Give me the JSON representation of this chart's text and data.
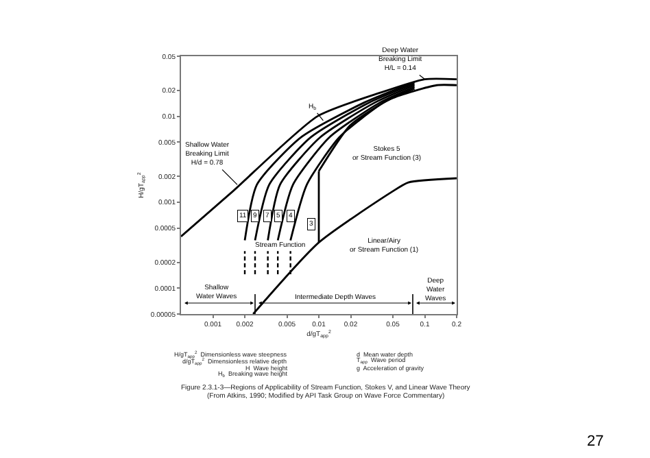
{
  "chart_data": {
    "type": "line",
    "xlabel": "d/gT$_{app}$$^{2}$",
    "ylabel": "H/gT$_{app}$$^{2}$",
    "log": "xy",
    "line_style": "solid",
    "marker": "none",
    "xlim": [
      0.0005,
      0.2
    ],
    "xticks": [
      0.001,
      0.002,
      0.005,
      0.01,
      0.02,
      0.05,
      0.1,
      0.2
    ],
    "ylim": [
      5e-05,
      0.05
    ],
    "yticks": [
      {
        "value": 5e-05,
        "label": "0.00005"
      },
      0.0001,
      0.0002,
      0.0005,
      0.001,
      0.002,
      0.005,
      0.01,
      0.02,
      0.05
    ],
    "series": [
      {
        "color": "#000000",
        "x": [
          0.0005,
          0.0015,
          0.0097,
          0.039,
          0.1,
          0.2
        ],
        "values": [
          0.0004,
          0.0013,
          0.01,
          0.019,
          0.027,
          0.027
        ]
      },
      {
        "color": "#000000",
        "x": [
          0.002,
          0.0026,
          0.0068,
          0.027,
          0.08
        ],
        "values": [
          0.00036,
          0.0016,
          0.0057,
          0.0145,
          0.025
        ]
      },
      {
        "color": "#000000",
        "x": [
          0.0025,
          0.0034,
          0.0084,
          0.03,
          0.08
        ],
        "values": [
          0.00036,
          0.0016,
          0.0057,
          0.0145,
          0.024
        ]
      },
      {
        "color": "#000000",
        "x": [
          0.0033,
          0.0043,
          0.0103,
          0.034,
          0.08
        ],
        "values": [
          0.00036,
          0.0016,
          0.0057,
          0.0145,
          0.023
        ]
      },
      {
        "color": "#000000",
        "x": [
          0.0041,
          0.0057,
          0.0126,
          0.038,
          0.08
        ],
        "values": [
          0.00036,
          0.0016,
          0.0057,
          0.0145,
          0.022
        ]
      },
      {
        "color": "#000000",
        "x": [
          0.0054,
          0.0077,
          0.0156,
          0.041,
          0.08
        ],
        "values": [
          0.00036,
          0.0016,
          0.0057,
          0.0145,
          0.021
        ]
      },
      {
        "color": "#000000",
        "x": [
          0.01,
          0.0197,
          0.048,
          0.13,
          0.2
        ],
        "values": [
          0.0023,
          0.0078,
          0.016,
          0.023,
          0.023
        ]
      },
      {
        "color": "#000000",
        "x": [
          0.01,
          0.01
        ],
        "values": [
          0.00034,
          0.0023
        ]
      },
      {
        "color": "#000000",
        "x": [
          0.0024,
          0.01,
          0.048,
          0.07,
          0.2
        ],
        "values": [
          5e-05,
          0.00034,
          0.0013,
          0.0017,
          0.0019
        ]
      },
      {
        "color": "#000000",
        "line_style": "dashed",
        "x": [
          0.002,
          0.002
        ],
        "values": [
          0.000145,
          0.00027
        ]
      },
      {
        "color": "#000000",
        "line_style": "dashed",
        "x": [
          0.0025,
          0.0025
        ],
        "values": [
          0.000145,
          0.00027
        ]
      },
      {
        "color": "#000000",
        "line_style": "dashed",
        "x": [
          0.0033,
          0.0033
        ],
        "values": [
          0.000145,
          0.00027
        ]
      },
      {
        "color": "#000000",
        "line_style": "dashed",
        "x": [
          0.0041,
          0.0041
        ],
        "values": [
          0.000145,
          0.00027
        ]
      },
      {
        "color": "#000000",
        "line_style": "dashed",
        "x": [
          0.0054,
          0.0054
        ],
        "values": [
          0.000145,
          0.00027
        ]
      }
    ],
    "annotations": [
      {
        "text": "Deep Water\nBreaking Limit\nH/L = 0.14",
        "x": 0.1,
        "y": 0.027
      },
      {
        "text": "Shallow Water\nBreaking Limit\nH/d = 0.78",
        "x": 0.0017,
        "y": 0.0016
      },
      {
        "text": "H$_{b}$",
        "x": 0.011,
        "y": 0.0089
      },
      {
        "text": "Stream Function",
        "x": 0.0043,
        "y": 0.00031
      },
      {
        "text": "11",
        "x": 0.0019,
        "y": 0.00068
      },
      {
        "text": "9",
        "x": 0.0025,
        "y": 0.00068
      },
      {
        "text": "7",
        "x": 0.0033,
        "y": 0.00068
      },
      {
        "text": "5",
        "x": 0.0041,
        "y": 0.00068
      },
      {
        "text": "4",
        "x": 0.0055,
        "y": 0.00068
      },
      {
        "text": "3",
        "x": 0.0084,
        "y": 0.00056
      },
      "Stokes 5\nor Stream Function (3)",
      "Linear/Airy\nor Stream Function (1)",
      "Shallow\nWater Waves",
      "Intermediate Depth Waves",
      "Deep\nWater\nWaves",
      "H/gT$_{app}$$^{2}$  Dimensionless wave steepness",
      "d/gT$_{app}$$^{2}$  Dimensionless relative depth",
      "H  Wave height",
      "H$_{b}$  Breaking wave height",
      "d  Mean water depth",
      "T$_{app}$  Wave period",
      "g  Acceleration of gravity",
      "Figure 2.3.1-3—Regions of Applicability of Stream Function, Stokes V, and Linear Wave Theory",
      "(From Atkins, 1990; Modified by API Task Group on Wave Force Commentary)",
      "27"
    ]
  }
}
